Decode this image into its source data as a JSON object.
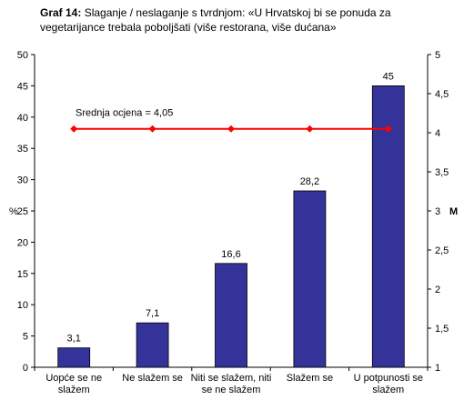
{
  "chart_data": {
    "type": "bar",
    "title_prefix": "Graf 14:",
    "title": "Slaganje / neslaganje s tvrdnjom: «U Hrvatskoj bi se ponuda za vegetarijance trebala poboljšati (više restorana, više dućana»",
    "categories": [
      [
        "Uopće se ne",
        "slažem"
      ],
      [
        "Ne slažem se"
      ],
      [
        "Niti se slažem, niti",
        "se ne slažem"
      ],
      [
        "Slažem se"
      ],
      [
        "U potpunosti se",
        "slažem"
      ]
    ],
    "values": [
      3.1,
      7.1,
      16.6,
      28.2,
      45
    ],
    "value_labels": [
      "3,1",
      "7,1",
      "16,6",
      "28,2",
      "45"
    ],
    "ylabel": "%",
    "ylim": [
      0,
      50
    ],
    "yticks": [
      "0",
      "5",
      "10",
      "15",
      "20",
      "25",
      "30",
      "35",
      "40",
      "45",
      "50"
    ],
    "y2label": "M",
    "y2lim": [
      1,
      5
    ],
    "y2ticks": [
      "1",
      "1,5",
      "2",
      "2,5",
      "3",
      "3,5",
      "4",
      "4,5",
      "5"
    ],
    "mean_line": {
      "label": "Srednja ocjena = 4,05",
      "value": 4.05,
      "color": "#ff0000"
    },
    "bar_color": "#333399",
    "grid": false,
    "legend": "none"
  }
}
